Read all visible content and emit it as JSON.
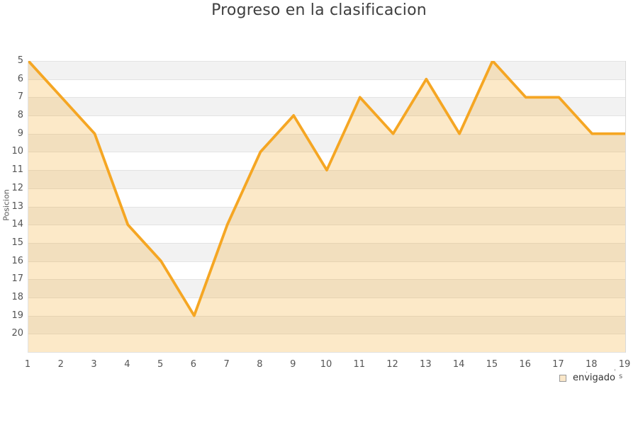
{
  "title": "Progreso en la clasificacion",
  "chart_data": {
    "type": "area",
    "title": "Progreso en la clasificacion",
    "xlabel": "",
    "ylabel": "Posicion",
    "x": [
      1,
      2,
      3,
      4,
      5,
      6,
      7,
      8,
      9,
      10,
      11,
      12,
      13,
      14,
      15,
      16,
      17,
      18,
      19
    ],
    "series": [
      {
        "name": "envigado",
        "values": [
          5,
          7,
          9,
          14,
          16,
          19,
          14,
          10,
          8,
          11,
          7,
          9,
          6,
          9,
          5,
          7,
          7,
          9,
          9
        ]
      }
    ],
    "y_axis": {
      "min": 5,
      "max": 21,
      "inverted": true,
      "tick_min": 5,
      "tick_max": 20,
      "tick_step": 1
    },
    "x_axis": {
      "tick_min": 1,
      "tick_max": 19,
      "tick_step": 1
    },
    "grid": {
      "striped": true,
      "stripe_first_band": "gray"
    },
    "legend": {
      "position": "bottom-right",
      "entries": [
        "envigado"
      ]
    },
    "colors": {
      "line": "#F5A623",
      "fill": "rgba(245,166,35,0.25)",
      "stripe_gray": "#f2f2f2",
      "stripe_white": "#ffffff",
      "gridline": "#e3e3e3",
      "axis_text": "#555555",
      "title_text": "#3f3f3f",
      "legend_marker_fill": "#fae7c9",
      "legend_marker_border": "#999999"
    }
  },
  "legend": {
    "label": "envigado"
  },
  "fragment": {
    "dot1": "·",
    "dot2": "'",
    "letter": "s"
  }
}
